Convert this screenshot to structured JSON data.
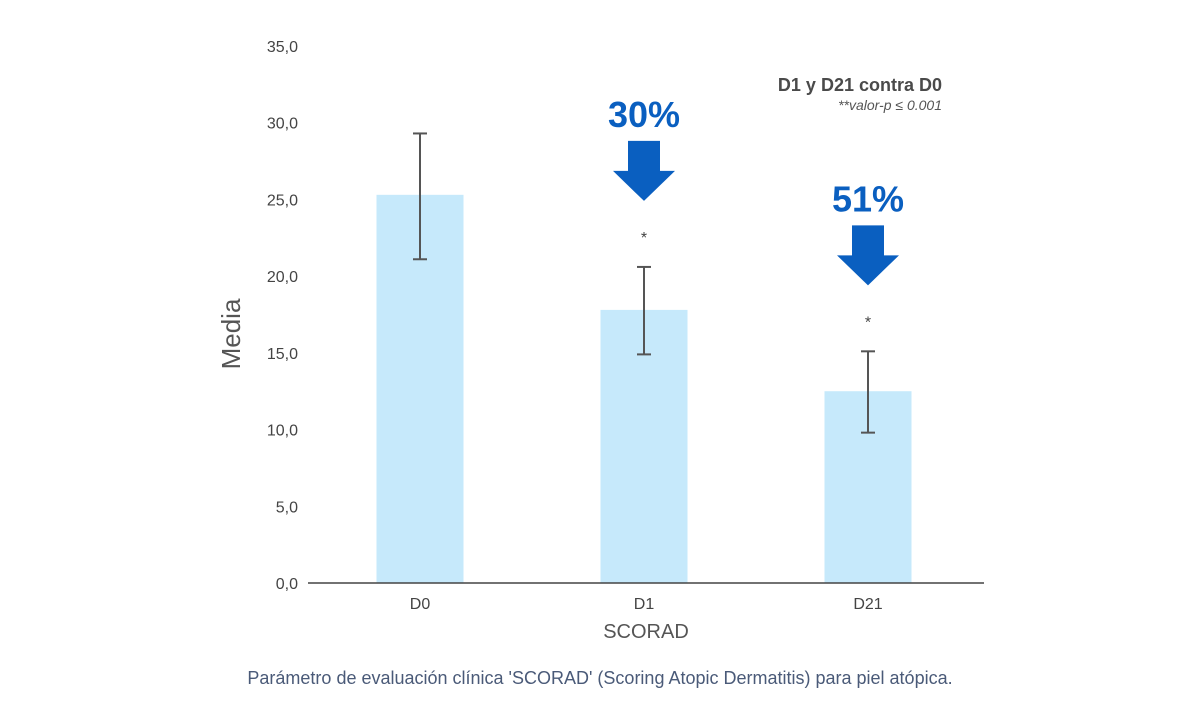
{
  "chart_data": {
    "type": "bar",
    "categories": [
      "D0",
      "D1",
      "D21"
    ],
    "values": [
      25.3,
      17.8,
      12.5
    ],
    "error_low": [
      21.1,
      14.9,
      9.8
    ],
    "error_high": [
      29.3,
      20.6,
      15.1
    ],
    "xlabel": "SCORAD",
    "ylabel": "Media",
    "ylim": [
      0,
      35
    ],
    "yticks": [
      0,
      5,
      10,
      15,
      20,
      25,
      30,
      35
    ],
    "ytick_labels": [
      "0,0",
      "5,0",
      "10,0",
      "15,0",
      "20,0",
      "25,0",
      "30,0",
      "35,0"
    ],
    "grid": false,
    "annotations": [
      {
        "category": "D1",
        "reduction_label": "30%",
        "significance": "*"
      },
      {
        "category": "D21",
        "reduction_label": "51%",
        "significance": "*"
      }
    ],
    "note_title": "D1 y D21 contra D0",
    "note_subtitle": "**valor-p ≤ 0.001",
    "colors": {
      "bar": "#c6e9fb",
      "arrow": "#0a5fc0",
      "error_bar": "#555555",
      "axis": "#444444"
    }
  },
  "caption": "Parámetro de evaluación clínica 'SCORAD' (Scoring Atopic Dermatitis) para piel atópica."
}
